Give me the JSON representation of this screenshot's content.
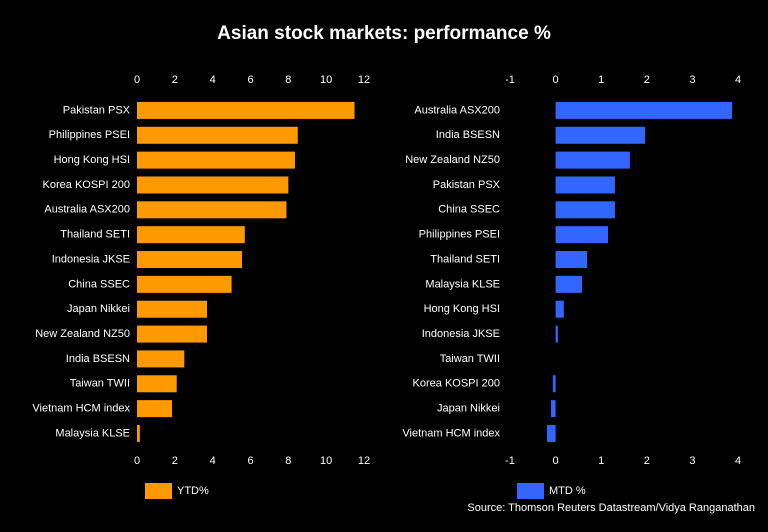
{
  "title": "Asian stock markets: performance %",
  "source": "Source: Thomson Reuters Datastream/Vidya Ranganathan",
  "chart_data": [
    {
      "type": "bar",
      "orientation": "horizontal",
      "categories": [
        "Pakistan PSX",
        "Philippines PSEI",
        "Hong Kong HSI",
        "Korea KOSPI 200",
        "Australia ASX200",
        "Thailand SETI",
        "Indonesia JKSE",
        "China SSEC",
        "Japan Nikkei",
        "New Zealand NZ50",
        "India BSESN",
        "Taiwan TWII",
        "Vietnam HCM index",
        "Malaysia KLSE"
      ],
      "series": [
        {
          "name": "YTD%",
          "color": "#ff9900",
          "values": [
            11.5,
            8.5,
            8.35,
            8.0,
            7.9,
            5.7,
            5.55,
            5.0,
            3.7,
            3.7,
            2.5,
            2.1,
            1.85,
            0.15
          ]
        }
      ],
      "xlim": [
        0,
        12
      ],
      "xticks": [
        0,
        2,
        4,
        6,
        8,
        10,
        12
      ]
    },
    {
      "type": "bar",
      "orientation": "horizontal",
      "categories": [
        "Australia ASX200",
        "India BSESN",
        "New Zealand NZ50",
        "Pakistan PSX",
        "China SSEC",
        "Philippines PSEI",
        "Thailand SETI",
        "Malaysia KLSE",
        "Hong Kong HSI",
        "Indonesia JKSE",
        "Taiwan TWII",
        "Korea KOSPI 200",
        "Japan Nikkei",
        "Vietnam HCM index"
      ],
      "series": [
        {
          "name": "MTD %",
          "color": "#3366ff",
          "values": [
            3.87,
            1.96,
            1.63,
            1.3,
            1.3,
            1.15,
            0.69,
            0.58,
            0.18,
            0.05,
            0,
            -0.06,
            -0.1,
            -0.19
          ]
        }
      ],
      "xlim": [
        -1,
        4
      ],
      "xticks": [
        -1,
        0,
        1,
        2,
        3,
        4
      ]
    }
  ]
}
